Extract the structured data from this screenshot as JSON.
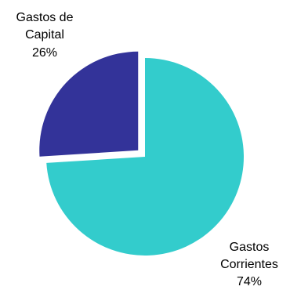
{
  "chart_data": {
    "type": "pie",
    "title": "",
    "start_angle": "12 o'clock, clockwise",
    "exploded": "Gastos de Capital",
    "slices": [
      {
        "name_lines": [
          "Gastos",
          "Corrientes"
        ],
        "value_label": "74%",
        "value": 74,
        "color": "#33CCCC"
      },
      {
        "name_lines": [
          "Gastos de",
          "Capital"
        ],
        "value_label": "26%",
        "value": 26,
        "color": "#333399"
      }
    ]
  }
}
